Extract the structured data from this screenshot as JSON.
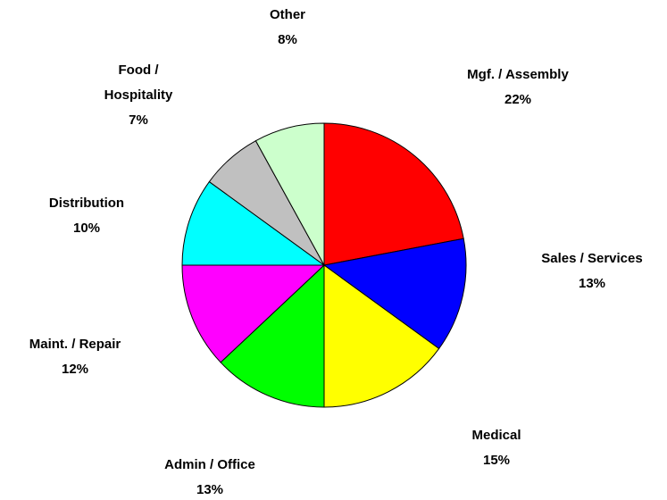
{
  "chart_data": {
    "type": "pie",
    "categories": [
      "Mgf. / Assembly",
      "Sales / Services",
      "Medical",
      "Admin / Office",
      "Maint. / Repair",
      "Distribution",
      "Food / Hospitality",
      "Other"
    ],
    "values": [
      22,
      13,
      15,
      13,
      12,
      10,
      7,
      8
    ],
    "value_labels": [
      "22%",
      "13%",
      "15%",
      "13%",
      "12%",
      "10%",
      "7%",
      "8%"
    ],
    "colors": [
      "#ff0000",
      "#0000ff",
      "#ffff00",
      "#00ff00",
      "#ff00ff",
      "#00ffff",
      "#c0c0c0",
      "#ccffcc"
    ]
  }
}
